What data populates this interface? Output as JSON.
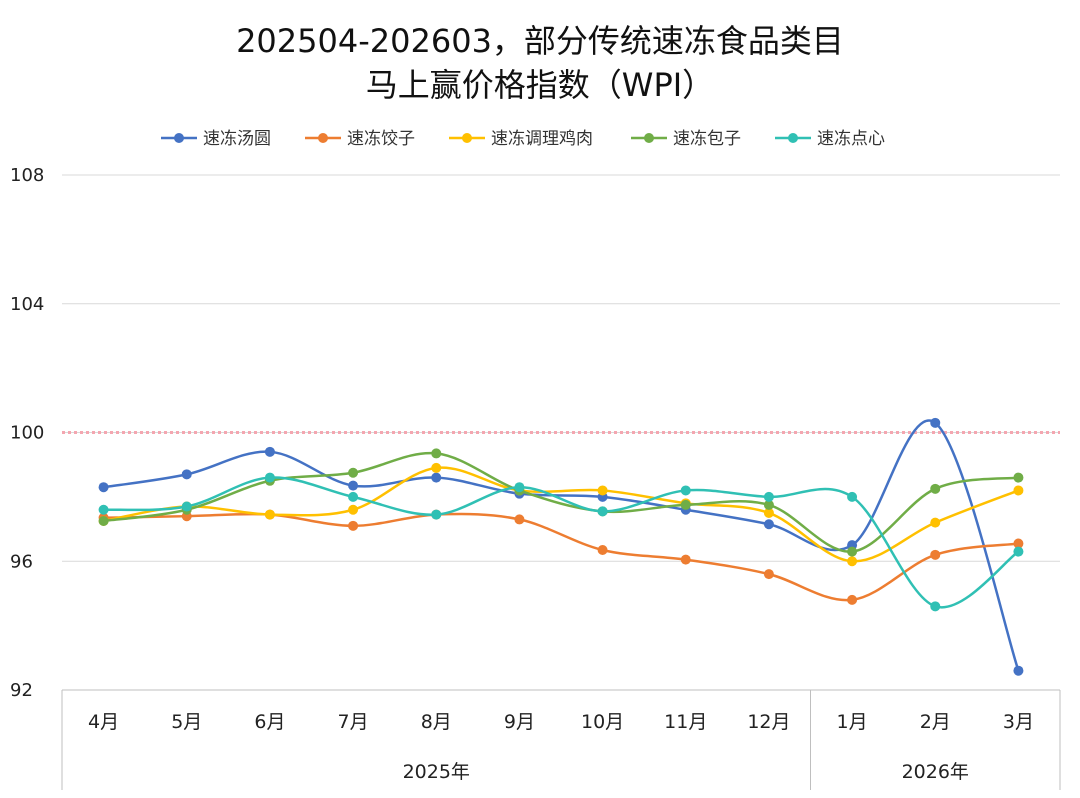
{
  "chart_data": {
    "type": "line",
    "title_lines": [
      "202504-202603，部分传统速冻食品类目",
      "马上赢价格指数（WPI）"
    ],
    "categories": [
      "4月",
      "5月",
      "6月",
      "7月",
      "8月",
      "9月",
      "10月",
      "11月",
      "12月",
      "1月",
      "2月",
      "3月"
    ],
    "year_groups": [
      {
        "label": "2025年",
        "start": 0,
        "end": 8
      },
      {
        "label": "2026年",
        "start": 9,
        "end": 11
      }
    ],
    "ylim": [
      92,
      108
    ],
    "yticks": [
      92,
      96,
      100,
      104,
      108
    ],
    "grid": true,
    "reference_line": {
      "value": 100,
      "color": "#f4a6b0",
      "style": "dotted"
    },
    "legend_position": "top",
    "series": [
      {
        "name": "速冻汤圆",
        "color": "#4472c4",
        "values": [
          98.3,
          98.7,
          99.4,
          98.35,
          98.6,
          98.1,
          98.0,
          97.6,
          97.15,
          96.5,
          100.3,
          92.6
        ]
      },
      {
        "name": "速冻饺子",
        "color": "#ed7d31",
        "values": [
          97.35,
          97.4,
          97.45,
          97.1,
          97.45,
          97.3,
          96.35,
          96.05,
          95.6,
          94.8,
          96.2,
          96.55
        ]
      },
      {
        "name": "速冻调理鸡肉",
        "color": "#ffc000",
        "values": [
          97.25,
          97.7,
          97.45,
          97.6,
          98.9,
          98.2,
          98.2,
          97.8,
          97.5,
          96.0,
          97.2,
          98.2
        ]
      },
      {
        "name": "速冻包子",
        "color": "#70ad47",
        "values": [
          97.25,
          97.6,
          98.5,
          98.75,
          99.35,
          98.2,
          97.55,
          97.75,
          97.75,
          96.3,
          98.25,
          98.6
        ]
      },
      {
        "name": "速冻点心",
        "color": "#30c0b4",
        "values": [
          97.6,
          97.7,
          98.6,
          98.0,
          97.45,
          98.3,
          97.55,
          98.2,
          98.0,
          98.0,
          94.6,
          96.3
        ]
      }
    ]
  }
}
